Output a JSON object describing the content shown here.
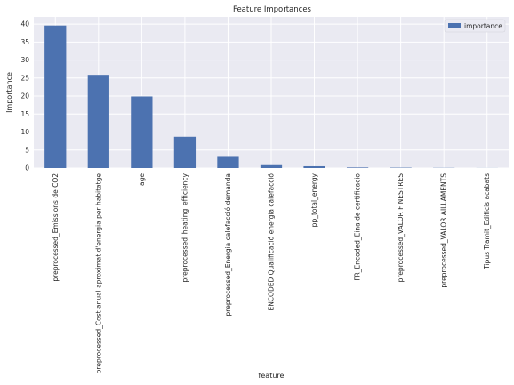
{
  "chart_data": {
    "type": "bar",
    "title": "Feature Importances",
    "xlabel": "feature",
    "ylabel": "Importance",
    "ylim": [
      0,
      42
    ],
    "yticks": [
      0,
      5,
      10,
      15,
      20,
      25,
      30,
      35,
      40
    ],
    "grid": true,
    "legend_position": "top-right",
    "bar_color": "#4c72b0",
    "background_color": "#eaeaf2",
    "categories": [
      "preprocessed_Emissions de CO2",
      "preprocessed_Cost anual aproximat d'energia per habitatge",
      "age",
      "preprocessed_heating_efficiency",
      "preprocessed_Energia calefacció demanda",
      "ENCODED Qualificació energia calefacció",
      "pp_total_energy",
      "FR_Encoded_Eina de certificacio",
      "preprocessed_VALOR FINESTRES",
      "preprocessed_VALOR AILLAMENTS",
      "Tipus Tramit_Edificis acabats"
    ],
    "series": [
      {
        "name": "importance",
        "values": [
          39.6,
          25.9,
          19.9,
          8.7,
          3.1,
          0.8,
          0.5,
          0.15,
          0.1,
          0.05,
          0.02
        ]
      }
    ]
  }
}
